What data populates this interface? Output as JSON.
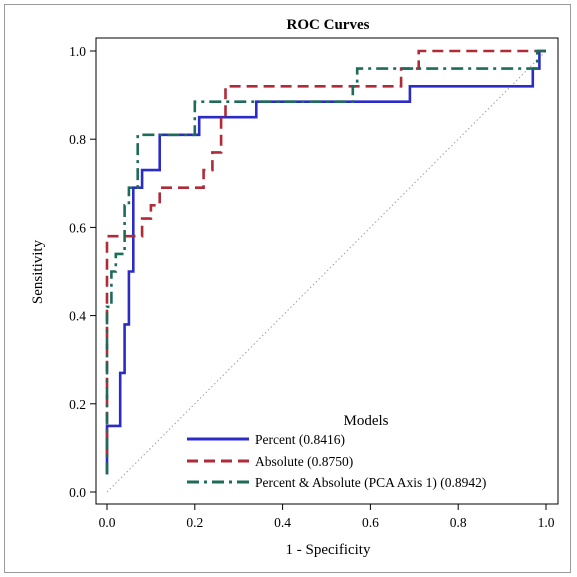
{
  "chart_data": {
    "type": "line",
    "title": "ROC Curves",
    "xlabel": "1 - Specificity",
    "ylabel": "Sensitivity",
    "xlim": [
      0.0,
      1.0
    ],
    "ylim": [
      0.0,
      1.0
    ],
    "xticks": [
      "0.0",
      "0.2",
      "0.4",
      "0.6",
      "0.8",
      "1.0"
    ],
    "yticks": [
      "0.0",
      "0.2",
      "0.4",
      "0.6",
      "0.8",
      "1.0"
    ],
    "grid": false,
    "legend": {
      "title": "Models",
      "placement": "bottom-right",
      "entries": [
        "Percent (0.8416)",
        "Absolute (0.8750)",
        "Percent & Absolute (PCA Axis 1) (0.8942)"
      ]
    },
    "reference_line": {
      "style": "dotted",
      "color": "#a0a0a0",
      "points": [
        [
          0,
          0
        ],
        [
          1,
          1
        ]
      ]
    },
    "series": [
      {
        "name": "Percent (0.8416)",
        "color": "#2b2bc8",
        "dash": "solid",
        "points": [
          [
            0,
            0.04
          ],
          [
            0,
            0.15
          ],
          [
            0.03,
            0.15
          ],
          [
            0.03,
            0.27
          ],
          [
            0.04,
            0.27
          ],
          [
            0.04,
            0.38
          ],
          [
            0.05,
            0.38
          ],
          [
            0.05,
            0.5
          ],
          [
            0.06,
            0.5
          ],
          [
            0.06,
            0.69
          ],
          [
            0.08,
            0.69
          ],
          [
            0.08,
            0.73
          ],
          [
            0.12,
            0.73
          ],
          [
            0.12,
            0.81
          ],
          [
            0.21,
            0.81
          ],
          [
            0.21,
            0.85
          ],
          [
            0.34,
            0.85
          ],
          [
            0.34,
            0.885
          ],
          [
            0.69,
            0.885
          ],
          [
            0.69,
            0.92
          ],
          [
            0.97,
            0.92
          ],
          [
            0.97,
            0.96
          ],
          [
            0.985,
            0.96
          ],
          [
            0.985,
            1.0
          ],
          [
            1.0,
            1.0
          ]
        ]
      },
      {
        "name": "Absolute (0.8750)",
        "color": "#b02a37",
        "dash": "dash",
        "points": [
          [
            0,
            0.08
          ],
          [
            0,
            0.58
          ],
          [
            0.08,
            0.58
          ],
          [
            0.08,
            0.62
          ],
          [
            0.1,
            0.62
          ],
          [
            0.1,
            0.65
          ],
          [
            0.12,
            0.65
          ],
          [
            0.12,
            0.69
          ],
          [
            0.22,
            0.69
          ],
          [
            0.22,
            0.73
          ],
          [
            0.24,
            0.73
          ],
          [
            0.24,
            0.77
          ],
          [
            0.26,
            0.77
          ],
          [
            0.26,
            0.85
          ],
          [
            0.27,
            0.85
          ],
          [
            0.27,
            0.92
          ],
          [
            0.67,
            0.92
          ],
          [
            0.67,
            0.96
          ],
          [
            0.71,
            0.96
          ],
          [
            0.71,
            1.0
          ],
          [
            1.0,
            1.0
          ]
        ]
      },
      {
        "name": "Percent & Absolute (PCA Axis 1) (0.8942)",
        "color": "#1e6b5a",
        "dash": "dashdot",
        "points": [
          [
            0,
            0.04
          ],
          [
            0,
            0.42
          ],
          [
            0.01,
            0.42
          ],
          [
            0.01,
            0.5
          ],
          [
            0.02,
            0.5
          ],
          [
            0.02,
            0.54
          ],
          [
            0.04,
            0.54
          ],
          [
            0.04,
            0.65
          ],
          [
            0.05,
            0.65
          ],
          [
            0.05,
            0.69
          ],
          [
            0.07,
            0.69
          ],
          [
            0.07,
            0.81
          ],
          [
            0.2,
            0.81
          ],
          [
            0.2,
            0.885
          ],
          [
            0.56,
            0.885
          ],
          [
            0.56,
            0.92
          ],
          [
            0.57,
            0.92
          ],
          [
            0.57,
            0.96
          ],
          [
            0.98,
            0.96
          ],
          [
            0.98,
            1.0
          ],
          [
            1.0,
            1.0
          ]
        ]
      }
    ]
  }
}
